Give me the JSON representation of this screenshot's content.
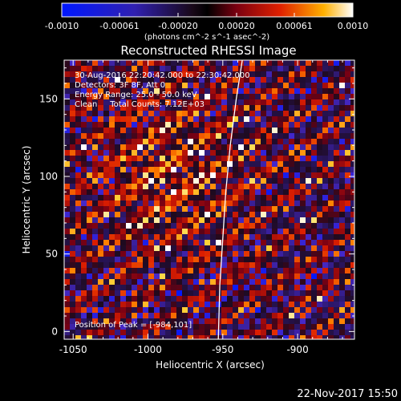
{
  "colorbar": {
    "ticks": [
      "-0.0010",
      "-0.00061",
      "-0.00020",
      "0.00020",
      "0.00061",
      "0.0010"
    ],
    "unit_label": "(photons cm^-2 s^-1 asec^-2)"
  },
  "chart_data": {
    "type": "heatmap",
    "title": "Reconstructed RHESSI Image",
    "xlabel": "Heliocentric X (arcsec)",
    "ylabel": "Heliocentric Y (arcsec)",
    "xlim": [
      -1056,
      -862
    ],
    "ylim": [
      -5,
      175
    ],
    "x_ticks": [
      "-1050",
      "-1000",
      "-950",
      "-900"
    ],
    "x_tick_values": [
      -1050,
      -1000,
      -950,
      -900
    ],
    "y_ticks": [
      "0",
      "50",
      "100",
      "150"
    ],
    "y_tick_values": [
      0,
      50,
      100,
      150
    ],
    "value_range": [
      -0.001,
      0.001
    ],
    "peak": {
      "x": -984,
      "y": 101
    },
    "limb": [
      {
        "x": -937,
        "y": 175
      },
      {
        "x": -941,
        "y": 150
      },
      {
        "x": -945,
        "y": 120
      },
      {
        "x": -948,
        "y": 90
      },
      {
        "x": -950,
        "y": 60
      },
      {
        "x": -952,
        "y": 30
      },
      {
        "x": -953,
        "y": -5
      }
    ],
    "annotations": {
      "time": "30-Aug-2016 22:20:42.000 to 22:30:42.000",
      "detectors": "Detectors: 3F 8F, Att 0",
      "energy": "Energy Range: 25.0 - 50.0 keV",
      "clean": "Clean     Total Counts: 7.12E+03",
      "peak": "Position of Peak = [-984,101]"
    }
  },
  "footer": {
    "timestamp": "22-Nov-2017 15:50"
  }
}
